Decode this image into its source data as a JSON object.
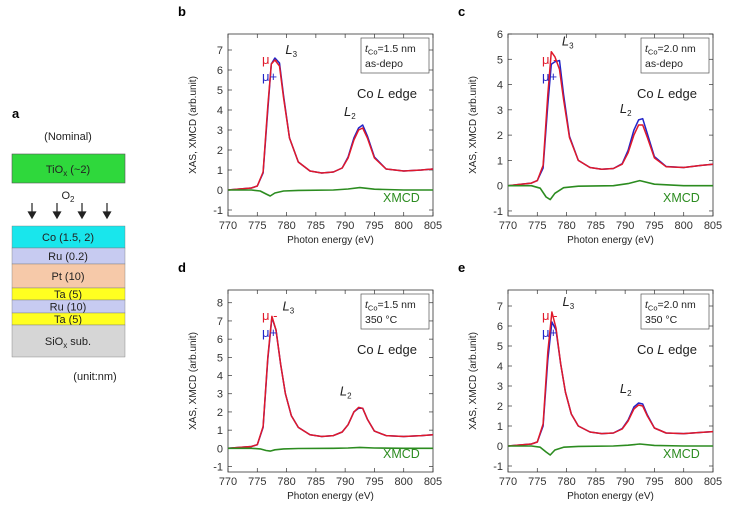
{
  "stack": {
    "panel_letter": "a",
    "nominal": "(Nominal)",
    "tiox": "TiOx (~2)",
    "o2": "O2",
    "layers": [
      {
        "label": "Co (1.5, 2)",
        "color": "#19e6ec"
      },
      {
        "label": "Ru (0.2)",
        "color": "#c7cbf1"
      },
      {
        "label": "Pt (10)",
        "color": "#f6c9a9"
      },
      {
        "label": "Ta (5)",
        "color": "#ffff21"
      },
      {
        "label": "Ru (10)",
        "color": "#c7cbf1"
      },
      {
        "label": "Ta (5)",
        "color": "#ffff21"
      },
      {
        "label": "SiOx sub.",
        "color": "#d6d6d6"
      }
    ],
    "tiox_color": "#2fd83c",
    "unit": "(unit:nm)"
  },
  "colors": {
    "mu_minus": "#e0192a",
    "mu_plus": "#2224c8",
    "xmcd": "#2c8c20"
  },
  "chart_data": [
    {
      "panel": "b",
      "type": "line",
      "legend": [
        "μ -",
        "μ+"
      ],
      "annotation_lines": [
        "t_Co=1.5 nm",
        "as-depo"
      ],
      "edge_label": "Co L edge",
      "peak_labels": [
        "L3",
        "L2"
      ],
      "xmcd_label": "XMCD",
      "xlabel": "Photon energy (eV)",
      "ylabel": "XAS, XMCD (arb.unit)",
      "xlim": [
        770,
        805
      ],
      "ylim": [
        -1.3,
        7.8
      ],
      "xticks": [
        770,
        775,
        780,
        785,
        790,
        795,
        800,
        805
      ],
      "yticks": [
        -1,
        0,
        1,
        2,
        3,
        4,
        5,
        6,
        7
      ],
      "series": [
        {
          "name": "μ -",
          "x": [
            770,
            772,
            774,
            775,
            776,
            776.8,
            777.4,
            778,
            778.8,
            779.5,
            780.5,
            782,
            784,
            786,
            788,
            789.5,
            790.5,
            791.5,
            792.3,
            793,
            793.8,
            795,
            797,
            800,
            803,
            805
          ],
          "y": [
            0,
            0.05,
            0.1,
            0.2,
            0.9,
            4.2,
            6.3,
            6.5,
            6.2,
            4.6,
            2.6,
            1.4,
            0.95,
            0.85,
            0.9,
            1.1,
            1.6,
            2.5,
            3.0,
            3.1,
            2.6,
            1.6,
            1.05,
            0.95,
            1.0,
            1.05
          ]
        },
        {
          "name": "μ+",
          "x": [
            770,
            772,
            774,
            775,
            776,
            776.8,
            777.4,
            778,
            778.8,
            779.5,
            780.5,
            782,
            784,
            786,
            788,
            789.5,
            790.5,
            791.5,
            792.3,
            793,
            793.8,
            795,
            797,
            800,
            803,
            805
          ],
          "y": [
            0,
            0.05,
            0.1,
            0.2,
            0.85,
            4.0,
            6.3,
            6.6,
            6.35,
            4.7,
            2.6,
            1.4,
            0.95,
            0.85,
            0.9,
            1.1,
            1.65,
            2.6,
            3.1,
            3.25,
            2.7,
            1.65,
            1.05,
            0.95,
            1.0,
            1.05
          ]
        },
        {
          "name": "XMCD",
          "x": [
            770,
            774,
            775.5,
            776.5,
            777.2,
            778,
            779.5,
            782,
            788,
            790.5,
            792.5,
            795,
            800,
            805
          ],
          "y": [
            0,
            0,
            -0.05,
            -0.2,
            -0.3,
            -0.15,
            -0.05,
            -0.02,
            0,
            0.05,
            0.12,
            0.04,
            0,
            0
          ]
        }
      ]
    },
    {
      "panel": "c",
      "type": "line",
      "legend": [
        "μ -",
        "μ+"
      ],
      "annotation_lines": [
        "t_Co=2.0 nm",
        "as-depo"
      ],
      "edge_label": "Co L edge",
      "peak_labels": [
        "L3",
        "L2"
      ],
      "xmcd_label": "XMCD",
      "xlabel": "Photon energy (eV)",
      "ylabel": "XAS, XMCD (arb.unit)",
      "xlim": [
        770,
        805
      ],
      "ylim": [
        -1.2,
        6.0
      ],
      "xticks": [
        770,
        775,
        780,
        785,
        790,
        795,
        800,
        805
      ],
      "yticks": [
        -1,
        0,
        1,
        2,
        3,
        4,
        5,
        6
      ],
      "series": [
        {
          "name": "μ -",
          "x": [
            770,
            772,
            774,
            775,
            776,
            776.8,
            777.4,
            778,
            778.8,
            779.5,
            780.5,
            782,
            784,
            786,
            788,
            789.5,
            790.5,
            791.5,
            792.3,
            793,
            793.8,
            795,
            797,
            800,
            803,
            805
          ],
          "y": [
            0,
            0.05,
            0.1,
            0.2,
            0.8,
            3.6,
            5.3,
            5.1,
            4.6,
            3.4,
            1.9,
            1.0,
            0.72,
            0.65,
            0.68,
            0.85,
            1.3,
            2.0,
            2.4,
            2.4,
            1.9,
            1.1,
            0.75,
            0.72,
            0.8,
            0.85
          ]
        },
        {
          "name": "μ+",
          "x": [
            770,
            772,
            774,
            775,
            776,
            776.8,
            777.4,
            778,
            778.8,
            779.5,
            780.5,
            782,
            784,
            786,
            788,
            789.5,
            790.5,
            791.5,
            792.3,
            793,
            793.8,
            795,
            797,
            800,
            803,
            805
          ],
          "y": [
            0,
            0.05,
            0.1,
            0.2,
            0.7,
            3.2,
            4.8,
            4.9,
            4.95,
            3.6,
            1.95,
            1.0,
            0.72,
            0.65,
            0.68,
            0.87,
            1.4,
            2.2,
            2.6,
            2.65,
            2.05,
            1.15,
            0.76,
            0.72,
            0.8,
            0.85
          ]
        },
        {
          "name": "XMCD",
          "x": [
            770,
            774,
            775.5,
            776.5,
            777.2,
            778,
            779.5,
            782,
            788,
            790.5,
            792.5,
            795,
            800,
            805
          ],
          "y": [
            0,
            0,
            -0.1,
            -0.45,
            -0.55,
            -0.3,
            -0.08,
            -0.02,
            0,
            0.08,
            0.2,
            0.06,
            0,
            0
          ]
        }
      ]
    },
    {
      "panel": "d",
      "type": "line",
      "legend": [
        "μ -",
        "μ+"
      ],
      "annotation_lines": [
        "t_Co=1.5 nm",
        "350 °C"
      ],
      "edge_label": "Co L edge",
      "peak_labels": [
        "L3",
        "L2"
      ],
      "xmcd_label": "XMCD",
      "xlabel": "Photon energy (eV)",
      "ylabel": "XAS, XMCD (arb.unit)",
      "xlim": [
        770,
        805
      ],
      "ylim": [
        -1.3,
        8.7
      ],
      "xticks": [
        770,
        775,
        780,
        785,
        790,
        795,
        800,
        805
      ],
      "yticks": [
        -1,
        0,
        1,
        2,
        3,
        4,
        5,
        6,
        7,
        8
      ],
      "series": [
        {
          "name": "μ -",
          "x": [
            770,
            772,
            774,
            775,
            776,
            776.8,
            777.5,
            778.2,
            779,
            779.8,
            780.8,
            782,
            784,
            786,
            788,
            789.5,
            790.5,
            791.5,
            792.3,
            793,
            793.8,
            795,
            797,
            800,
            803,
            805
          ],
          "y": [
            0,
            0.05,
            0.1,
            0.2,
            1.2,
            5.0,
            7.25,
            6.5,
            4.6,
            3.0,
            1.8,
            1.15,
            0.75,
            0.65,
            0.7,
            0.9,
            1.3,
            2.0,
            2.25,
            2.2,
            1.6,
            0.95,
            0.7,
            0.65,
            0.7,
            0.75
          ]
        },
        {
          "name": "μ+",
          "x": [
            770,
            772,
            774,
            775,
            776,
            776.8,
            777.5,
            778.2,
            779,
            779.8,
            780.8,
            782,
            784,
            786,
            788,
            789.5,
            790.5,
            791.5,
            792.3,
            793,
            793.8,
            795,
            797,
            800,
            803,
            805
          ],
          "y": [
            0,
            0.05,
            0.1,
            0.2,
            1.15,
            4.9,
            7.2,
            6.5,
            4.6,
            3.0,
            1.8,
            1.15,
            0.75,
            0.65,
            0.7,
            0.9,
            1.3,
            2.0,
            2.2,
            2.2,
            1.6,
            0.95,
            0.7,
            0.65,
            0.7,
            0.75
          ]
        },
        {
          "name": "XMCD",
          "x": [
            770,
            774,
            775.5,
            776.5,
            777.2,
            778,
            779.5,
            782,
            788,
            790.5,
            792.5,
            795,
            800,
            805
          ],
          "y": [
            0,
            0,
            -0.03,
            -0.12,
            -0.15,
            -0.08,
            -0.03,
            -0.01,
            0,
            0.02,
            0.05,
            0.02,
            0,
            0
          ]
        }
      ]
    },
    {
      "panel": "e",
      "type": "line",
      "legend": [
        "μ -",
        "μ+"
      ],
      "annotation_lines": [
        "t_Co=2.0 nm",
        "350 °C"
      ],
      "edge_label": "Co L edge",
      "peak_labels": [
        "L3",
        "L2"
      ],
      "xmcd_label": "XMCD",
      "xlabel": "Photon energy (eV)",
      "ylabel": "XAS, XMCD (arb.unit)",
      "xlim": [
        770,
        805
      ],
      "ylim": [
        -1.3,
        7.8
      ],
      "xticks": [
        770,
        775,
        780,
        785,
        790,
        795,
        800,
        805
      ],
      "yticks": [
        -1,
        0,
        1,
        2,
        3,
        4,
        5,
        6,
        7
      ],
      "series": [
        {
          "name": "μ -",
          "x": [
            770,
            772,
            774,
            775,
            776,
            776.8,
            777.5,
            778.2,
            779,
            779.8,
            780.8,
            782,
            784,
            786,
            788,
            789.5,
            790.5,
            791.5,
            792.3,
            793,
            793.8,
            795,
            797,
            800,
            803,
            805
          ],
          "y": [
            0,
            0.05,
            0.1,
            0.2,
            1.1,
            4.7,
            6.7,
            5.9,
            4.1,
            2.7,
            1.6,
            1.0,
            0.7,
            0.62,
            0.65,
            0.85,
            1.25,
            1.85,
            2.05,
            2.0,
            1.5,
            0.9,
            0.65,
            0.62,
            0.68,
            0.72
          ]
        },
        {
          "name": "μ+",
          "x": [
            770,
            772,
            774,
            775,
            776,
            776.8,
            777.5,
            778.2,
            779,
            779.8,
            780.8,
            782,
            784,
            786,
            788,
            789.5,
            790.5,
            791.5,
            792.3,
            793,
            793.8,
            795,
            797,
            800,
            803,
            805
          ],
          "y": [
            0,
            0.05,
            0.1,
            0.2,
            1.0,
            4.3,
            6.2,
            5.8,
            4.1,
            2.7,
            1.6,
            1.0,
            0.7,
            0.62,
            0.65,
            0.87,
            1.3,
            1.95,
            2.15,
            2.1,
            1.55,
            0.9,
            0.65,
            0.62,
            0.68,
            0.72
          ]
        },
        {
          "name": "XMCD",
          "x": [
            770,
            774,
            775.5,
            776.5,
            777.2,
            778,
            779.5,
            782,
            788,
            790.5,
            792.5,
            795,
            800,
            805
          ],
          "y": [
            0,
            0,
            -0.06,
            -0.3,
            -0.45,
            -0.2,
            -0.06,
            -0.02,
            0,
            0.04,
            0.1,
            0.03,
            0,
            0
          ]
        }
      ]
    }
  ]
}
